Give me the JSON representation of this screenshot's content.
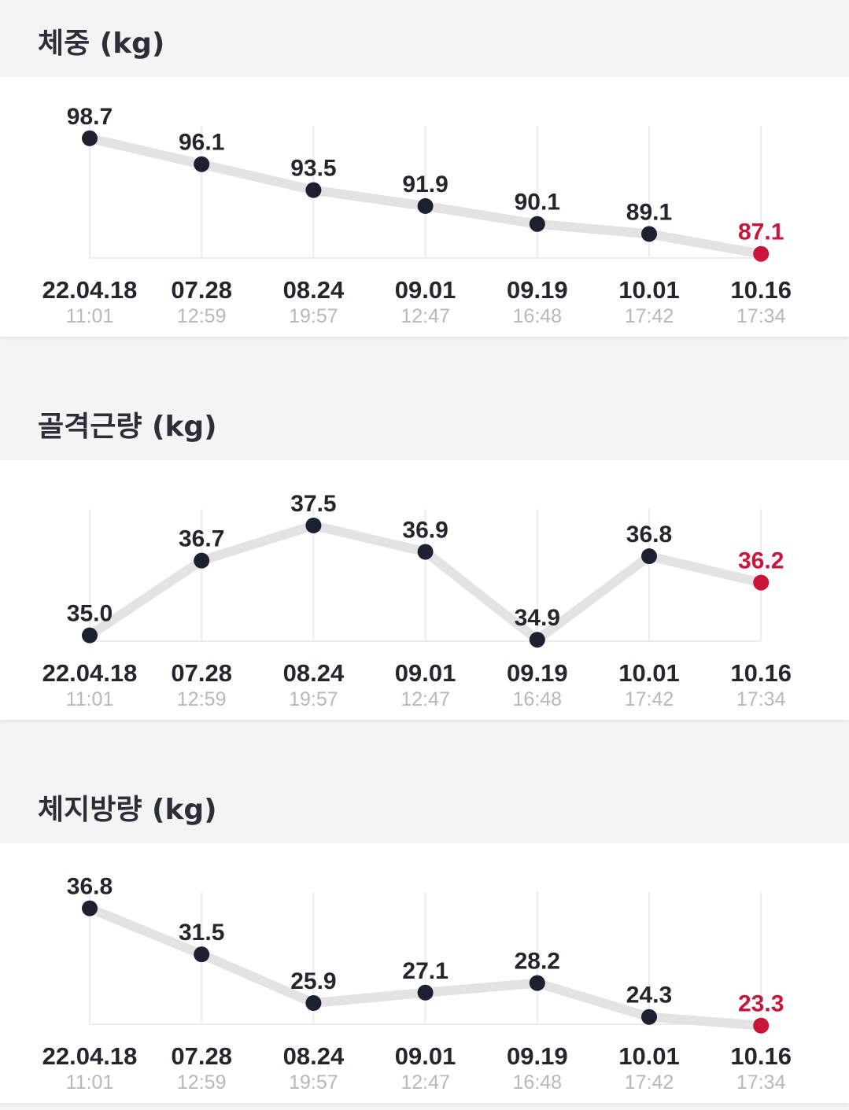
{
  "colors": {
    "point": "#1c2030",
    "last_point": "#c8163a",
    "line": "#e3e3e3",
    "grid": "#ececec"
  },
  "charts": [
    {
      "title": "체중 (kg)",
      "chart_data": {
        "type": "line",
        "x": [
          "22.04.18",
          "07.28",
          "08.24",
          "09.01",
          "09.19",
          "10.01",
          "10.16"
        ],
        "times": [
          "11:01",
          "12:59",
          "19:57",
          "12:47",
          "16:48",
          "17:42",
          "17:34"
        ],
        "values": [
          98.7,
          96.1,
          93.5,
          91.9,
          90.1,
          89.1,
          87.1
        ],
        "value_labels": [
          "98.7",
          "96.1",
          "93.5",
          "91.9",
          "90.1",
          "89.1",
          "87.1"
        ],
        "ylim": [
          85.5,
          100.5
        ],
        "grid": true,
        "highlight_last": true
      }
    },
    {
      "title": "골격근량 (kg)",
      "chart_data": {
        "type": "line",
        "x": [
          "22.04.18",
          "07.28",
          "08.24",
          "09.01",
          "09.19",
          "10.01",
          "10.16"
        ],
        "times": [
          "11:01",
          "12:59",
          "19:57",
          "12:47",
          "16:48",
          "17:42",
          "17:34"
        ],
        "values": [
          35.0,
          36.7,
          37.5,
          36.9,
          34.9,
          36.8,
          36.2
        ],
        "value_labels": [
          "35.0",
          "36.7",
          "37.5",
          "36.9",
          "34.9",
          "36.8",
          "36.2"
        ],
        "ylim": [
          34.6,
          38.0
        ],
        "grid": true,
        "highlight_last": true
      }
    },
    {
      "title": "체지방량 (kg)",
      "chart_data": {
        "type": "line",
        "x": [
          "22.04.18",
          "07.28",
          "08.24",
          "09.01",
          "09.19",
          "10.01",
          "10.16"
        ],
        "times": [
          "11:01",
          "12:59",
          "19:57",
          "12:47",
          "16:48",
          "17:42",
          "17:34"
        ],
        "values": [
          36.8,
          31.5,
          25.9,
          27.1,
          28.2,
          24.3,
          23.3
        ],
        "value_labels": [
          "36.8",
          "31.5",
          "25.9",
          "27.1",
          "28.2",
          "24.3",
          "23.3"
        ],
        "ylim": [
          22.1,
          39.3
        ],
        "grid": true,
        "highlight_last": true
      }
    }
  ]
}
